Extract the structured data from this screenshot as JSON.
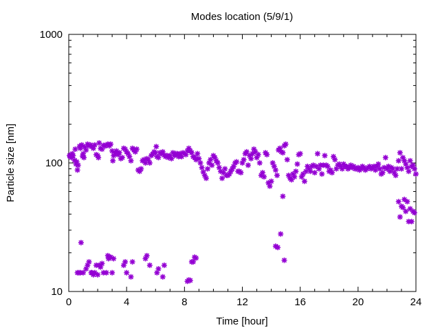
{
  "chart_data": {
    "type": "scatter",
    "title": "Modes location (5/9/1)",
    "xlabel": "Time [hour]",
    "ylabel": "Particle size [nm]",
    "xlim": [
      0,
      24
    ],
    "ylim": [
      10,
      1000
    ],
    "yscale": "log",
    "xticks": [
      0,
      4,
      8,
      12,
      16,
      20,
      24
    ],
    "yticks": [
      10,
      100,
      1000
    ],
    "grid": false,
    "legend": "none",
    "marker_color": "#9400d3",
    "marker": "asterisk",
    "series": [
      {
        "values": [
          [
            0.05,
            114
          ],
          [
            0.1,
            112
          ],
          [
            0.15,
            116
          ],
          [
            0.2,
            110
          ],
          [
            0.25,
            118
          ],
          [
            0.3,
            114
          ],
          [
            0.4,
            105
          ],
          [
            0.45,
            128
          ],
          [
            0.5,
            98
          ],
          [
            0.55,
            102
          ],
          [
            0.6,
            88
          ],
          [
            0.65,
            96
          ],
          [
            0.75,
            135
          ],
          [
            0.8,
            130
          ],
          [
            0.9,
            138
          ],
          [
            0.95,
            113
          ],
          [
            1.0,
            118
          ],
          [
            1.05,
            110
          ],
          [
            1.1,
            133
          ],
          [
            1.2,
            126
          ],
          [
            1.3,
            140
          ],
          [
            1.4,
            136
          ],
          [
            1.5,
            138
          ],
          [
            1.6,
            134
          ],
          [
            1.7,
            130
          ],
          [
            1.8,
            138
          ],
          [
            1.9,
            116
          ],
          [
            2.0,
            114
          ],
          [
            2.05,
            110
          ],
          [
            2.1,
            143
          ],
          [
            2.2,
            130
          ],
          [
            2.3,
            128
          ],
          [
            2.4,
            137
          ],
          [
            2.5,
            135
          ],
          [
            2.6,
            138
          ],
          [
            2.7,
            140
          ],
          [
            2.8,
            136
          ],
          [
            2.9,
            140
          ],
          [
            3.0,
            124
          ],
          [
            3.05,
            104
          ],
          [
            3.1,
            114
          ],
          [
            3.2,
            120
          ],
          [
            3.3,
            124
          ],
          [
            3.4,
            116
          ],
          [
            3.5,
            120
          ],
          [
            3.6,
            108
          ],
          [
            3.7,
            110
          ],
          [
            3.8,
            130
          ],
          [
            3.9,
            128
          ],
          [
            4.0,
            122
          ],
          [
            4.1,
            118
          ],
          [
            4.2,
            112
          ],
          [
            4.3,
            104
          ],
          [
            4.4,
            130
          ],
          [
            4.5,
            126
          ],
          [
            4.6,
            122
          ],
          [
            4.7,
            128
          ],
          [
            4.8,
            88
          ],
          [
            4.9,
            86
          ],
          [
            5.0,
            90
          ],
          [
            5.1,
            104
          ],
          [
            5.2,
            106
          ],
          [
            5.3,
            100
          ],
          [
            5.4,
            108
          ],
          [
            5.5,
            105
          ],
          [
            5.6,
            100
          ],
          [
            5.7,
            114
          ],
          [
            5.8,
            117
          ],
          [
            5.9,
            122
          ],
          [
            6.0,
            120
          ],
          [
            6.05,
            134
          ],
          [
            6.1,
            112
          ],
          [
            6.2,
            110
          ],
          [
            6.3,
            120
          ],
          [
            6.4,
            118
          ],
          [
            6.5,
            122
          ],
          [
            6.6,
            115
          ],
          [
            6.7,
            112
          ],
          [
            6.8,
            114
          ],
          [
            6.9,
            110
          ],
          [
            7.0,
            114
          ],
          [
            7.1,
            108
          ],
          [
            7.2,
            120
          ],
          [
            7.3,
            114
          ],
          [
            7.4,
            118
          ],
          [
            7.5,
            118
          ],
          [
            7.6,
            112
          ],
          [
            7.7,
            118
          ],
          [
            7.8,
            112
          ],
          [
            7.9,
            120
          ],
          [
            8.0,
            118
          ],
          [
            8.1,
            116
          ],
          [
            8.2,
            124
          ],
          [
            8.3,
            130
          ],
          [
            8.4,
            124
          ],
          [
            8.5,
            120
          ],
          [
            8.6,
            112
          ],
          [
            8.7,
            110
          ],
          [
            8.8,
            106
          ],
          [
            8.9,
            118
          ],
          [
            9.0,
            108
          ],
          [
            9.1,
            100
          ],
          [
            9.2,
            92
          ],
          [
            9.3,
            85
          ],
          [
            9.4,
            80
          ],
          [
            9.5,
            76
          ],
          [
            9.6,
            90
          ],
          [
            9.7,
            100
          ],
          [
            9.8,
            106
          ],
          [
            9.9,
            96
          ],
          [
            10.0,
            114
          ],
          [
            10.1,
            110
          ],
          [
            10.2,
            104
          ],
          [
            10.3,
            100
          ],
          [
            10.4,
            92
          ],
          [
            10.5,
            86
          ],
          [
            10.6,
            76
          ],
          [
            10.7,
            84
          ],
          [
            10.8,
            90
          ],
          [
            10.9,
            80
          ],
          [
            11.0,
            80
          ],
          [
            11.1,
            82
          ],
          [
            11.2,
            86
          ],
          [
            11.3,
            90
          ],
          [
            11.4,
            94
          ],
          [
            11.5,
            100
          ],
          [
            11.6,
            102
          ],
          [
            11.7,
            86
          ],
          [
            11.8,
            86
          ],
          [
            11.9,
            84
          ],
          [
            12.0,
            100
          ],
          [
            12.1,
            106
          ],
          [
            12.2,
            118
          ],
          [
            12.3,
            122
          ],
          [
            12.4,
            96
          ],
          [
            12.5,
            114
          ],
          [
            12.6,
            108
          ],
          [
            12.7,
            118
          ],
          [
            12.8,
            128
          ],
          [
            12.9,
            122
          ],
          [
            13.0,
            110
          ],
          [
            13.1,
            116
          ],
          [
            13.2,
            100
          ],
          [
            13.3,
            80
          ],
          [
            13.4,
            84
          ],
          [
            13.5,
            78
          ],
          [
            13.6,
            120
          ],
          [
            13.7,
            116
          ],
          [
            13.8,
            70
          ],
          [
            13.9,
            66
          ],
          [
            14.0,
            72
          ],
          [
            14.1,
            100
          ],
          [
            14.2,
            94
          ],
          [
            14.3,
            88
          ],
          [
            14.4,
            80
          ],
          [
            14.5,
            126
          ],
          [
            14.6,
            130
          ],
          [
            14.7,
            122
          ],
          [
            14.8,
            120
          ],
          [
            14.9,
            136
          ],
          [
            15.0,
            140
          ],
          [
            15.1,
            106
          ],
          [
            15.2,
            80
          ],
          [
            15.3,
            76
          ],
          [
            15.4,
            74
          ],
          [
            15.5,
            82
          ],
          [
            15.6,
            78
          ],
          [
            15.7,
            86
          ],
          [
            15.8,
            98
          ],
          [
            15.9,
            116
          ],
          [
            16.0,
            118
          ],
          [
            16.1,
            78
          ],
          [
            16.2,
            82
          ],
          [
            16.3,
            72
          ],
          [
            16.4,
            86
          ],
          [
            16.5,
            94
          ],
          [
            16.6,
            90
          ],
          [
            16.7,
            86
          ],
          [
            16.8,
            94
          ],
          [
            16.9,
            96
          ],
          [
            17.0,
            84
          ],
          [
            17.1,
            94
          ],
          [
            17.2,
            118
          ],
          [
            17.3,
            90
          ],
          [
            17.4,
            96
          ],
          [
            17.5,
            82
          ],
          [
            17.6,
            96
          ],
          [
            17.7,
            114
          ],
          [
            17.8,
            96
          ],
          [
            17.9,
            94
          ],
          [
            18.0,
            86
          ],
          [
            18.1,
            88
          ],
          [
            18.2,
            84
          ],
          [
            18.3,
            112
          ],
          [
            18.4,
            106
          ],
          [
            18.5,
            90
          ],
          [
            18.6,
            96
          ],
          [
            18.7,
            98
          ],
          [
            18.8,
            94
          ],
          [
            18.9,
            90
          ],
          [
            19.0,
            98
          ],
          [
            19.1,
            94
          ],
          [
            19.2,
            94
          ],
          [
            19.3,
            90
          ],
          [
            19.4,
            92
          ],
          [
            19.5,
            96
          ],
          [
            19.6,
            92
          ],
          [
            19.7,
            94
          ],
          [
            19.8,
            90
          ],
          [
            19.9,
            90
          ],
          [
            20.0,
            92
          ],
          [
            20.1,
            88
          ],
          [
            20.2,
            90
          ],
          [
            20.3,
            94
          ],
          [
            20.4,
            92
          ],
          [
            20.5,
            88
          ],
          [
            20.6,
            90
          ],
          [
            20.7,
            92
          ],
          [
            20.8,
            94
          ],
          [
            20.9,
            90
          ],
          [
            21.0,
            92
          ],
          [
            21.1,
            94
          ],
          [
            21.2,
            88
          ],
          [
            21.3,
            94
          ],
          [
            21.4,
            98
          ],
          [
            21.5,
            90
          ],
          [
            21.6,
            82
          ],
          [
            21.7,
            84
          ],
          [
            21.8,
            92
          ],
          [
            21.9,
            110
          ],
          [
            22.0,
            90
          ],
          [
            22.1,
            94
          ],
          [
            22.2,
            86
          ],
          [
            22.3,
            92
          ],
          [
            22.4,
            90
          ],
          [
            22.5,
            84
          ],
          [
            22.6,
            80
          ],
          [
            22.7,
            90
          ],
          [
            22.8,
            104
          ],
          [
            22.9,
            120
          ],
          [
            23.0,
            90
          ],
          [
            23.1,
            110
          ],
          [
            23.2,
            104
          ],
          [
            23.3,
            98
          ],
          [
            23.4,
            92
          ],
          [
            23.5,
            86
          ],
          [
            23.6,
            104
          ],
          [
            23.7,
            94
          ],
          [
            23.8,
            96
          ],
          [
            23.9,
            90
          ],
          [
            24.0,
            82
          ]
        ]
      },
      {
        "values": [
          [
            0.6,
            14
          ],
          [
            0.7,
            14
          ],
          [
            0.8,
            14
          ],
          [
            0.85,
            24
          ],
          [
            1.0,
            14
          ],
          [
            1.2,
            15
          ],
          [
            1.3,
            16
          ],
          [
            1.4,
            17
          ],
          [
            1.55,
            14
          ],
          [
            1.6,
            14
          ],
          [
            1.7,
            13.5
          ],
          [
            1.8,
            14
          ],
          [
            1.9,
            16
          ],
          [
            2.0,
            13.5
          ],
          [
            2.1,
            16
          ],
          [
            2.2,
            15.5
          ],
          [
            2.3,
            16.5
          ],
          [
            2.4,
            14
          ],
          [
            2.6,
            14
          ],
          [
            2.7,
            19
          ],
          [
            2.75,
            18
          ],
          [
            2.8,
            18.5
          ],
          [
            2.9,
            18.5
          ],
          [
            3.0,
            14
          ],
          [
            3.1,
            18
          ],
          [
            3.8,
            16
          ],
          [
            3.9,
            17
          ],
          [
            4.0,
            14
          ],
          [
            4.3,
            13
          ],
          [
            4.4,
            17
          ],
          [
            5.3,
            18
          ],
          [
            5.4,
            19
          ],
          [
            5.6,
            16
          ],
          [
            6.1,
            14
          ],
          [
            6.2,
            15
          ],
          [
            6.5,
            13
          ],
          [
            6.6,
            16
          ],
          [
            8.2,
            12
          ],
          [
            8.3,
            12.3
          ],
          [
            8.4,
            12.2
          ],
          [
            8.5,
            17
          ],
          [
            8.6,
            17
          ],
          [
            8.7,
            18.5
          ],
          [
            8.8,
            18.2
          ],
          [
            14.3,
            22.5
          ],
          [
            14.45,
            22
          ],
          [
            14.65,
            28
          ],
          [
            14.8,
            55
          ],
          [
            14.9,
            17.5
          ],
          [
            22.8,
            50
          ],
          [
            22.9,
            38
          ],
          [
            23.0,
            46
          ],
          [
            23.1,
            45
          ],
          [
            23.2,
            52
          ],
          [
            23.3,
            42
          ],
          [
            23.4,
            50
          ],
          [
            23.5,
            35
          ],
          [
            23.6,
            44
          ],
          [
            23.7,
            35
          ],
          [
            23.8,
            42
          ],
          [
            23.9,
            41
          ]
        ]
      }
    ]
  }
}
